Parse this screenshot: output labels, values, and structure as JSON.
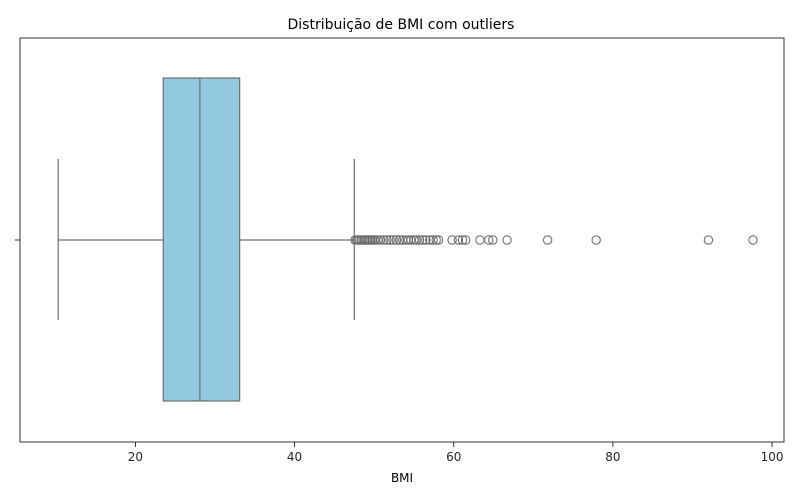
{
  "chart_data": {
    "type": "boxplot",
    "title": "Distribuição de BMI com outliers",
    "xlabel": "BMI",
    "ylabel": "",
    "xlim": [
      5.5,
      101.5
    ],
    "xticks": [
      20,
      40,
      60,
      80,
      100
    ],
    "orientation": "horizontal",
    "grid": false,
    "colors": {
      "box_fill": "#92c9e0",
      "line": "#6e6e6e",
      "axis": "#000000"
    },
    "box": {
      "whisker_low": 10.3,
      "q1": 23.5,
      "median": 28.1,
      "q3": 33.1,
      "whisker_high": 47.5
    },
    "outliers": [
      47.6,
      47.8,
      48.0,
      48.2,
      48.4,
      48.6,
      48.8,
      49.0,
      49.2,
      49.4,
      49.6,
      49.8,
      50.0,
      50.2,
      50.5,
      50.8,
      51.2,
      51.6,
      52.0,
      52.4,
      52.8,
      53.2,
      53.6,
      54.0,
      54.3,
      54.6,
      55.0,
      55.3,
      55.7,
      56.1,
      56.5,
      57.0,
      57.4,
      57.8,
      58.1,
      59.8,
      60.6,
      61.1,
      61.5,
      63.3,
      64.4,
      64.9,
      66.7,
      71.8,
      77.9,
      92.0,
      97.6
    ]
  }
}
